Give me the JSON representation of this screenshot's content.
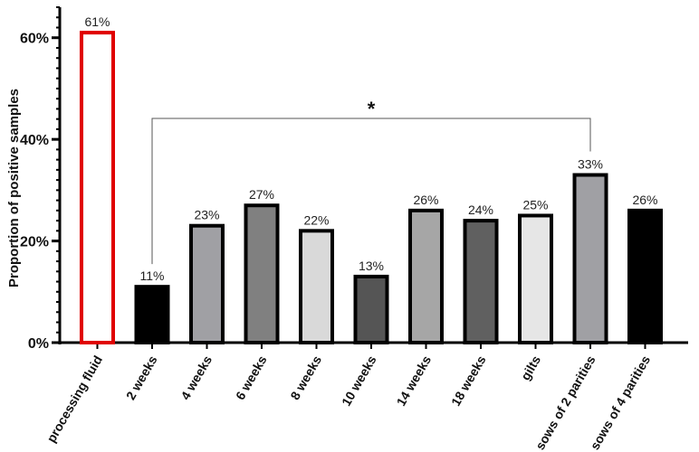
{
  "chart_data": {
    "type": "bar",
    "ylabel": "Proportion of positive samples",
    "ylim": [
      0,
      66
    ],
    "yticks": [
      0,
      20,
      40,
      60
    ],
    "ytick_labels": [
      "0%",
      "20%",
      "40%",
      "60%"
    ],
    "grid": false,
    "categories": [
      "processing fluid",
      "2 weeks",
      "4 weeks",
      "6 weeks",
      "8 weeks",
      "10 weeks",
      "14 weeks",
      "18 weeks",
      "gilts",
      "sows of 2 parities",
      "sows of 4 parities"
    ],
    "values": [
      61,
      11,
      23,
      27,
      22,
      13,
      26,
      24,
      25,
      33,
      26
    ],
    "data_labels": [
      "61%",
      "11%",
      "23%",
      "27%",
      "22%",
      "13%",
      "26%",
      "24%",
      "25%",
      "33%",
      "26%"
    ],
    "bar_fills": [
      "#ffffff",
      "#000000",
      "#a0a0a4",
      "#808080",
      "#d9d9d9",
      "#555555",
      "#a6a6a6",
      "#606060",
      "#e6e6e6",
      "#a0a0a4",
      "#000000"
    ],
    "bar_strokes": [
      "#e00000",
      "#000000",
      "#000000",
      "#000000",
      "#000000",
      "#000000",
      "#000000",
      "#000000",
      "#000000",
      "#000000",
      "#000000"
    ],
    "significance": {
      "from": "2 weeks",
      "to": "sows of 2 parities",
      "label": "*"
    }
  }
}
